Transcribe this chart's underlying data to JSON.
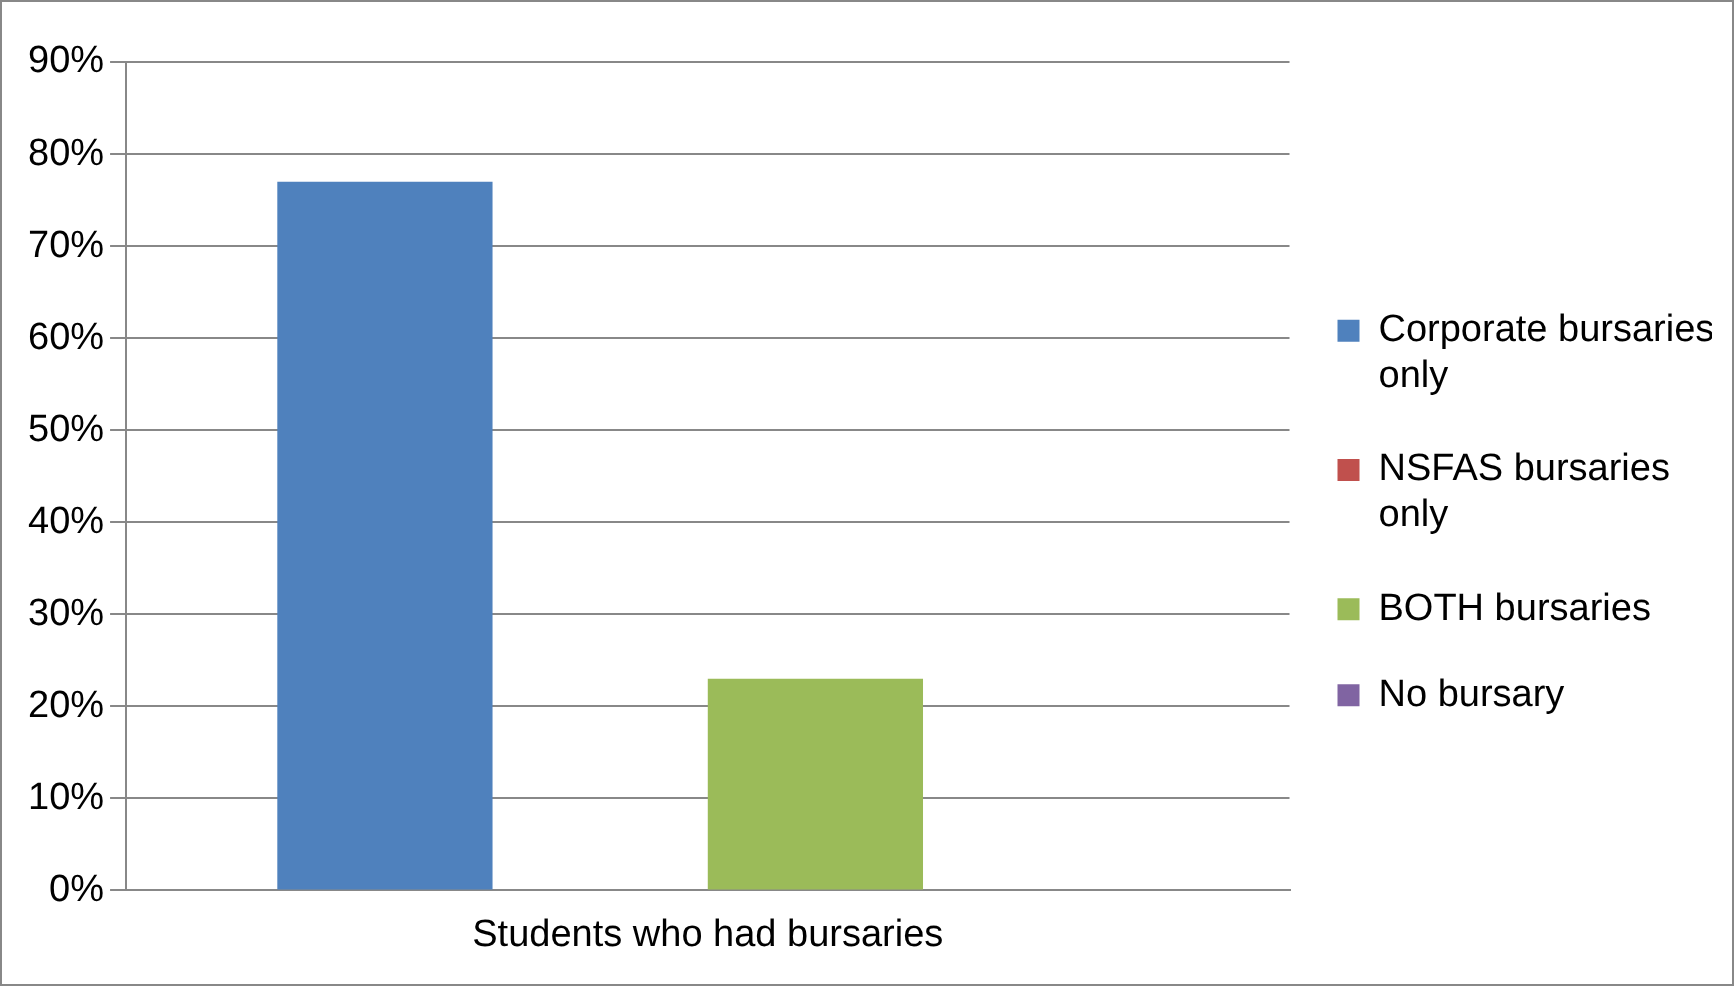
{
  "chart_data": {
    "type": "bar",
    "categories": [
      "Students who had bursaries"
    ],
    "series": [
      {
        "name": "Corporate bursaries only",
        "color": "#4f81bd",
        "values": [
          77
        ]
      },
      {
        "name": "NSFAS bursaries only",
        "color": "#c0504d",
        "values": [
          0
        ]
      },
      {
        "name": "BOTH bursaries",
        "color": "#9bbb59",
        "values": [
          23
        ]
      },
      {
        "name": "No bursary",
        "color": "#8064a2",
        "values": [
          0
        ]
      }
    ],
    "ylim": [
      0,
      90
    ],
    "yticks": [
      {
        "value": 0,
        "label": "0%"
      },
      {
        "value": 10,
        "label": "10%"
      },
      {
        "value": 20,
        "label": "20%"
      },
      {
        "value": 30,
        "label": "30%"
      },
      {
        "value": 40,
        "label": "40%"
      },
      {
        "value": 50,
        "label": "50%"
      },
      {
        "value": 60,
        "label": "60%"
      },
      {
        "value": 70,
        "label": "70%"
      },
      {
        "value": 80,
        "label": "80%"
      },
      {
        "value": 90,
        "label": "90%"
      }
    ],
    "grid": "y",
    "legend": "right"
  }
}
